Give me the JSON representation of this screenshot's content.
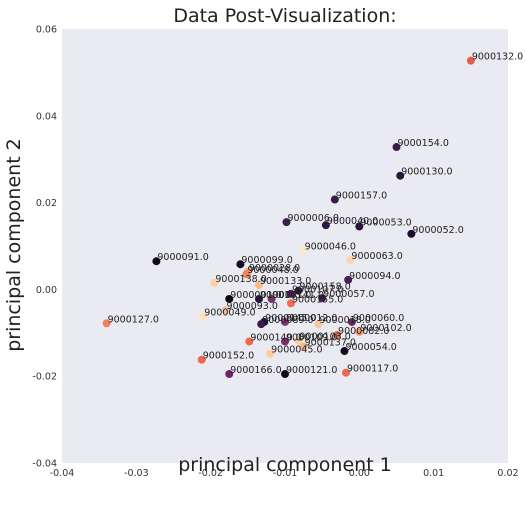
{
  "chart_data": {
    "type": "scatter",
    "title": "Data Post-Visualization:",
    "xlabel": "principal component 1",
    "ylabel": "principal component 2",
    "xlim": [
      -0.04,
      0.02
    ],
    "ylim": [
      -0.04,
      0.06
    ],
    "xticks": [
      "-0.04",
      "-0.03",
      "-0.02",
      "-0.01",
      "0.00",
      "0.01",
      "0.02"
    ],
    "yticks": [
      "-0.04",
      "-0.02",
      "0.00",
      "0.02",
      "0.04",
      "0.06"
    ],
    "grid": false,
    "background": "#eaeaf2",
    "points": [
      {
        "label": "9000132.0",
        "x": 0.015,
        "y": 0.0527,
        "color": "#e85d47"
      },
      {
        "label": "9000154.0",
        "x": 0.005,
        "y": 0.0328,
        "color": "#3b1c4c"
      },
      {
        "label": "9000130.0",
        "x": 0.0055,
        "y": 0.0262,
        "color": "#2d1540"
      },
      {
        "label": "9000157.0",
        "x": -0.0033,
        "y": 0.0207,
        "color": "#361a49"
      },
      {
        "label": "9000006.0",
        "x": -0.0098,
        "y": 0.0155,
        "color": "#3f1c50"
      },
      {
        "label": "9000040.0",
        "x": -0.0045,
        "y": 0.0148,
        "color": "#2f1643"
      },
      {
        "label": "9000053.0",
        "x": 0.0,
        "y": 0.0145,
        "color": "#2a1238"
      },
      {
        "label": "9000052.0",
        "x": 0.007,
        "y": 0.0128,
        "color": "#1e0f2e"
      },
      {
        "label": "9000091.0",
        "x": -0.0273,
        "y": 0.0065,
        "color": "#0f0a1e"
      },
      {
        "label": "9000046.0",
        "x": -0.0075,
        "y": 0.009,
        "color": "#fbe8c8"
      },
      {
        "label": "9000063.0",
        "x": -0.0012,
        "y": 0.0068,
        "color": "#fcd6a9"
      },
      {
        "label": "9000099.0",
        "x": -0.016,
        "y": 0.0058,
        "color": "#120b22"
      },
      {
        "label": "9000028.0",
        "x": -0.015,
        "y": 0.004,
        "color": "#f7a26c"
      },
      {
        "label": "9000048.0",
        "x": -0.0152,
        "y": 0.0035,
        "color": "#ef855e"
      },
      {
        "label": "9000094.0",
        "x": -0.0015,
        "y": 0.0022,
        "color": "#4a1e5a"
      },
      {
        "label": "9000138.0",
        "x": -0.0195,
        "y": 0.0015,
        "color": "#fbd2a0"
      },
      {
        "label": "9000133.0",
        "x": -0.0135,
        "y": 0.001,
        "color": "#f8bb88"
      },
      {
        "label": "9000158.0",
        "x": -0.0082,
        "y": -0.0003,
        "color": "#2b1338"
      },
      {
        "label": "9000107.0",
        "x": -0.0092,
        "y": -0.001,
        "color": "#4e1f5c"
      },
      {
        "label": "9000057.0",
        "x": -0.005,
        "y": -0.002,
        "color": "#3d1b4e"
      },
      {
        "label": "9000001.0",
        "x": -0.0175,
        "y": -0.0022,
        "color": "#0d081a"
      },
      {
        "label": "9000161.0",
        "x": -0.0135,
        "y": -0.0022,
        "color": "#2c1440"
      },
      {
        "label": "9000141.0",
        "x": -0.0118,
        "y": -0.0022,
        "color": "#7a2e6a"
      },
      {
        "label": "9000155.0",
        "x": -0.0092,
        "y": -0.0032,
        "color": "#f06b4f"
      },
      {
        "label": "9000093.0",
        "x": -0.018,
        "y": -0.0048,
        "color": "#f2c096"
      },
      {
        "label": "9000049.0",
        "x": -0.021,
        "y": -0.0062,
        "color": "#fde0b8"
      },
      {
        "label": "9000127.0",
        "x": -0.034,
        "y": -0.0078,
        "color": "#f08060"
      },
      {
        "label": "9000145.0",
        "x": -0.0128,
        "y": -0.0075,
        "color": "#1a0d2b"
      },
      {
        "label": "9000012.0",
        "x": -0.01,
        "y": -0.0075,
        "color": "#8a3470"
      },
      {
        "label": "9000089.0",
        "x": -0.0132,
        "y": -0.008,
        "color": "#3a1a4b"
      },
      {
        "label": "9000018.0",
        "x": -0.0055,
        "y": -0.008,
        "color": "#f9c89a"
      },
      {
        "label": "9000060.0",
        "x": -0.001,
        "y": -0.0075,
        "color": "#6a2766"
      },
      {
        "label": "9000102.0",
        "x": 0.0,
        "y": -0.0098,
        "color": "#f59a6c"
      },
      {
        "label": "9000082.0",
        "x": -0.003,
        "y": -0.0105,
        "color": "#e8704e"
      },
      {
        "label": "9000140.0",
        "x": -0.0148,
        "y": -0.012,
        "color": "#eb6a4c"
      },
      {
        "label": "9000109.0",
        "x": -0.01,
        "y": -0.012,
        "color": "#7b2d6b"
      },
      {
        "label": "9000103.0",
        "x": -0.0082,
        "y": -0.0118,
        "color": "#fad0a2"
      },
      {
        "label": "9000137.0",
        "x": -0.0075,
        "y": -0.0132,
        "color": "#f7b784"
      },
      {
        "label": "9000054.0",
        "x": -0.002,
        "y": -0.0142,
        "color": "#120a20"
      },
      {
        "label": "9000045.0",
        "x": -0.012,
        "y": -0.0148,
        "color": "#fccc9c"
      },
      {
        "label": "9000152.0",
        "x": -0.0212,
        "y": -0.0162,
        "color": "#e86a50"
      },
      {
        "label": "9000166.0",
        "x": -0.0175,
        "y": -0.0195,
        "color": "#6b2468"
      },
      {
        "label": "9000121.0",
        "x": -0.01,
        "y": -0.0195,
        "color": "#100a1e"
      },
      {
        "label": "9000117.0",
        "x": -0.0018,
        "y": -0.0192,
        "color": "#ee6a4c"
      }
    ]
  }
}
